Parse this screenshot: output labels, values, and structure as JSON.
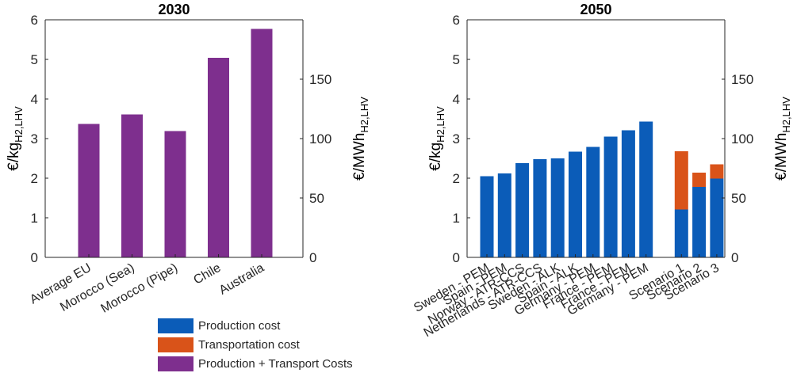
{
  "colors": {
    "production": "#0b5cb8",
    "transport": "#d95319",
    "combined": "#7e2f8e",
    "axis": "#262626",
    "background": "#ffffff"
  },
  "chart_data": [
    {
      "type": "bar",
      "title": "2030",
      "categories": [
        "Average EU",
        "Morocco (Sea)",
        "Morocco (Pipe)",
        "Chile",
        "Australia"
      ],
      "series": [
        {
          "name": "Production + Transport Costs",
          "values": [
            3.37,
            3.61,
            3.19,
            5.04,
            5.77
          ]
        }
      ],
      "ylabel_left": "€/kg",
      "ylabel_left_sub": "H2,LHV",
      "ylim_left": [
        0,
        6
      ],
      "yticks_left": [
        "0",
        "1",
        "2",
        "3",
        "4",
        "5",
        "6"
      ],
      "ylabel_right": "€/MWh",
      "ylabel_right_sub": "H2,LHV",
      "ylim_right": [
        0,
        200
      ],
      "yticks_right": [
        "0",
        "50",
        "100",
        "150"
      ],
      "xlabel": ""
    },
    {
      "type": "bar",
      "stacked": true,
      "title": "2050",
      "categories": [
        "Sweden - PEM",
        "Spain - PEM",
        "Norway - ATR-CCS",
        "Netherlands - ATR-CCS",
        "Sweden - ALK",
        "Spain - ALK",
        "Germany - PEM",
        "France - PEM",
        "France - PEM",
        "Germany - PEM",
        "",
        "Scenario 1",
        "Scenario 2",
        "Scenario 3"
      ],
      "series": [
        {
          "name": "Production cost",
          "values": [
            2.05,
            2.12,
            2.38,
            2.48,
            2.5,
            2.67,
            2.79,
            3.05,
            3.21,
            3.43,
            null,
            1.21,
            1.78,
            1.99
          ]
        },
        {
          "name": "Transportation cost",
          "values": [
            0,
            0,
            0,
            0,
            0,
            0,
            0,
            0,
            0,
            0,
            null,
            1.47,
            0.36,
            0.36
          ]
        }
      ],
      "ylabel_left": "€/kg",
      "ylabel_left_sub": "H2,LHV",
      "ylim_left": [
        0,
        6
      ],
      "yticks_left": [
        "0",
        "1",
        "2",
        "3",
        "4",
        "5",
        "6"
      ],
      "ylabel_right": "€/MWh",
      "ylabel_right_sub": "H2,LHV",
      "ylim_right": [
        0,
        200
      ],
      "yticks_right": [
        "0",
        "50",
        "100",
        "150"
      ],
      "xlabel": ""
    }
  ],
  "legend": {
    "items": [
      {
        "label": "Production cost",
        "color": "#0b5cb8"
      },
      {
        "label": "Transportation cost",
        "color": "#d95319"
      },
      {
        "label": "Production + Transport Costs",
        "color": "#7e2f8e"
      }
    ]
  }
}
